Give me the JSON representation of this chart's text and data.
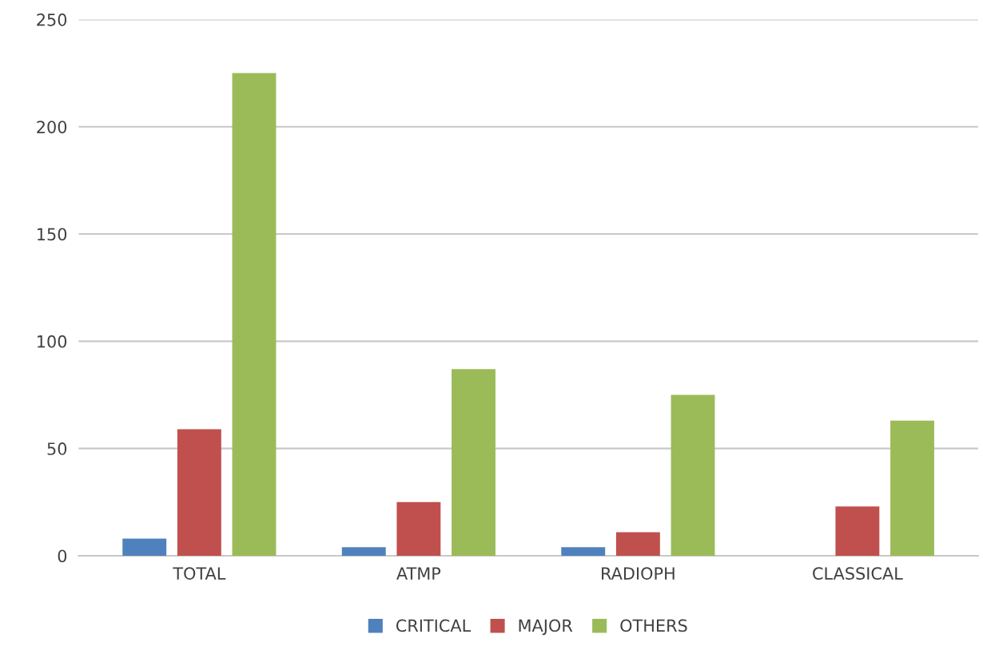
{
  "chart_data": {
    "type": "bar",
    "categories": [
      "TOTAL",
      "ATMP",
      "RADIOPH",
      "CLASSICAL"
    ],
    "series": [
      {
        "name": "CRITICAL",
        "color": "#4f81bd",
        "values": [
          8,
          4,
          4,
          0
        ]
      },
      {
        "name": "MAJOR",
        "color": "#c0504d",
        "values": [
          59,
          25,
          11,
          23
        ]
      },
      {
        "name": "OTHERS",
        "color": "#9bbb59",
        "values": [
          225,
          87,
          75,
          63
        ]
      }
    ],
    "ylim": [
      0,
      250
    ],
    "yticks": [
      0,
      50,
      100,
      150,
      200,
      250
    ],
    "grid": "y",
    "legend": "bottom"
  }
}
